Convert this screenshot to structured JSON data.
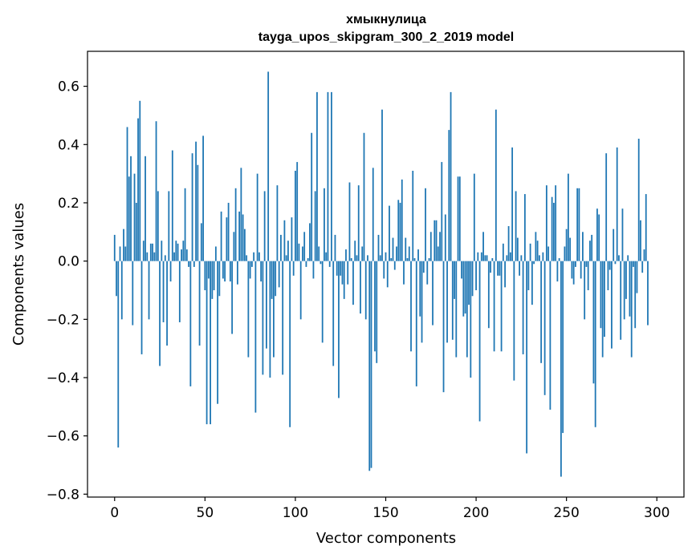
{
  "chart_data": {
    "type": "bar",
    "title": "хмыкнулица",
    "subtitle": "tayga_upos_skipgram_300_2_2019 model",
    "xlabel": "Vector components",
    "ylabel": "Components values",
    "xlim": [
      -15,
      315
    ],
    "ylim": [
      -0.81,
      0.72
    ],
    "xticks": [
      0,
      50,
      100,
      150,
      200,
      250,
      300
    ],
    "xtick_labels": [
      "0",
      "50",
      "100",
      "150",
      "200",
      "250",
      "300"
    ],
    "yticks": [
      -0.8,
      -0.6,
      -0.4,
      -0.2,
      0.0,
      0.2,
      0.4,
      0.6
    ],
    "ytick_labels": [
      "−0.8",
      "−0.6",
      "−0.4",
      "−0.2",
      "0.0",
      "0.2",
      "0.4",
      "0.6"
    ],
    "bar_color": "#1f77b4",
    "grid": false,
    "values": [
      0.09,
      -0.12,
      -0.64,
      0.05,
      -0.2,
      0.11,
      0.05,
      0.46,
      0.29,
      0.36,
      -0.22,
      0.3,
      0.2,
      0.49,
      0.55,
      -0.32,
      0.07,
      0.36,
      0.03,
      -0.2,
      0.06,
      0.06,
      0.03,
      0.48,
      0.24,
      -0.36,
      0.07,
      -0.21,
      0.02,
      -0.29,
      0.24,
      -0.07,
      0.38,
      0.03,
      0.07,
      0.06,
      -0.21,
      0.04,
      0.07,
      0.25,
      0.04,
      -0.02,
      -0.43,
      0.37,
      -0.02,
      0.41,
      0.33,
      -0.29,
      0.13,
      0.43,
      -0.1,
      -0.56,
      -0.06,
      -0.56,
      -0.13,
      -0.1,
      0.05,
      -0.49,
      -0.12,
      0.17,
      -0.06,
      -0.07,
      0.15,
      0.2,
      -0.07,
      -0.25,
      0.1,
      0.25,
      -0.08,
      0.17,
      0.32,
      0.16,
      0.11,
      0.02,
      -0.33,
      -0.06,
      -0.02,
      0.03,
      -0.52,
      0.3,
      0.03,
      -0.07,
      -0.39,
      0.24,
      -0.3,
      0.65,
      -0.4,
      -0.13,
      -0.33,
      -0.12,
      0.26,
      -0.09,
      0.09,
      -0.39,
      0.14,
      0.02,
      0.07,
      -0.57,
      0.15,
      -0.05,
      0.31,
      0.34,
      0.06,
      -0.2,
      0.05,
      0.1,
      -0.02,
      0.01,
      0.13,
      0.44,
      -0.06,
      0.24,
      0.58,
      0.05,
      -0.01,
      -0.28,
      0.25,
      0.03,
      0.58,
      -0.02,
      0.58,
      -0.36,
      0.09,
      -0.05,
      -0.47,
      -0.05,
      -0.08,
      -0.13,
      0.04,
      -0.08,
      0.27,
      0.01,
      -0.15,
      0.07,
      0.02,
      0.26,
      -0.18,
      0.05,
      0.44,
      -0.2,
      0.02,
      -0.72,
      -0.71,
      0.32,
      -0.31,
      -0.35,
      0.09,
      0.02,
      0.52,
      -0.06,
      0.03,
      -0.09,
      0.19,
      0.01,
      0.08,
      -0.03,
      0.05,
      0.21,
      0.2,
      0.28,
      -0.08,
      0.08,
      0.01,
      0.05,
      -0.31,
      0.31,
      0.01,
      -0.43,
      0.04,
      -0.19,
      -0.28,
      -0.04,
      0.25,
      -0.08,
      0.01,
      0.1,
      -0.22,
      0.14,
      0.14,
      0.05,
      0.1,
      0.34,
      -0.45,
      0.16,
      -0.28,
      0.45,
      0.58,
      -0.27,
      -0.13,
      -0.33,
      0.29,
      0.29,
      -0.06,
      -0.19,
      -0.18,
      -0.33,
      -0.15,
      -0.4,
      -0.12,
      0.3,
      -0.1,
      0.03,
      -0.55,
      0.03,
      0.1,
      0.02,
      0.02,
      -0.23,
      -0.04,
      0.01,
      -0.31,
      0.52,
      -0.05,
      -0.05,
      -0.31,
      0.06,
      -0.09,
      0.02,
      0.12,
      0.03,
      0.39,
      -0.41,
      0.24,
      0.08,
      -0.05,
      0.02,
      -0.32,
      0.23,
      -0.66,
      -0.1,
      0.06,
      -0.15,
      -0.01,
      0.1,
      0.07,
      0.02,
      -0.35,
      0.03,
      -0.46,
      0.26,
      0.05,
      -0.51,
      0.22,
      0.2,
      0.26,
      -0.07,
      0.01,
      -0.74,
      -0.59,
      0.05,
      0.11,
      0.3,
      0.08,
      -0.06,
      -0.08,
      -0.02,
      0.25,
      0.25,
      -0.06,
      0.1,
      -0.2,
      -0.02,
      -0.1,
      0.07,
      0.09,
      -0.42,
      -0.57,
      0.18,
      0.16,
      -0.23,
      -0.33,
      -0.26,
      0.37,
      -0.1,
      -0.03,
      -0.3,
      0.11,
      -0.01,
      0.39,
      0.02,
      -0.27,
      0.18,
      -0.2,
      -0.13,
      0.02,
      -0.19,
      -0.33,
      -0.02,
      -0.23,
      -0.11,
      0.42,
      0.14,
      -0.04,
      0.04,
      0.23,
      -0.22
    ]
  }
}
